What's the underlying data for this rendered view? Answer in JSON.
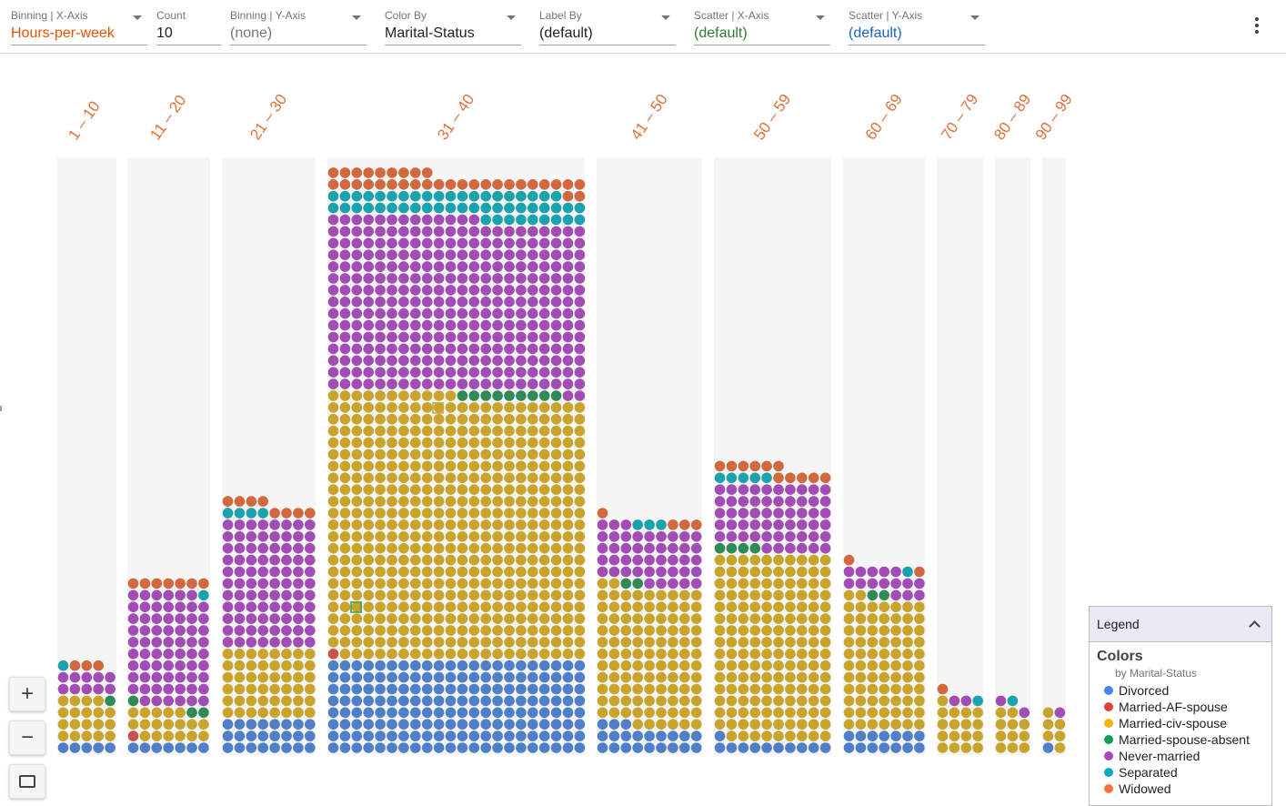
{
  "toolbar": {
    "controls": [
      {
        "label": "Binning | X-Axis",
        "value": "Hours-per-week",
        "color": "#e65100",
        "dropdown": true
      },
      {
        "label": "Count",
        "value": "10",
        "color": "#212121",
        "dropdown": false
      },
      {
        "label": "Binning | Y-Axis",
        "value": "(none)",
        "color": "#757575",
        "dropdown": true
      },
      {
        "label": "Color By",
        "value": "Marital-Status",
        "color": "#212121",
        "dropdown": true
      },
      {
        "label": "Label By",
        "value": "(default)",
        "color": "#212121",
        "dropdown": true
      },
      {
        "label": "Scatter | X-Axis",
        "value": "(default)",
        "color": "#2e7d32",
        "dropdown": true
      },
      {
        "label": "Scatter | Y-Axis",
        "value": "(default)",
        "color": "#1565c0",
        "dropdown": true
      }
    ],
    "menu_icon": "more-vert-icon"
  },
  "zoom": {
    "zoom_in_label": "+",
    "zoom_out_label": "−",
    "fit_icon": "fit-to-screen-icon"
  },
  "legend": {
    "header": "Legend",
    "title": "Colors",
    "subtitle": "by Marital-Status",
    "items": [
      {
        "label": "Divorced",
        "color": "#4285f4"
      },
      {
        "label": "Married-AF-spouse",
        "color": "#db4437"
      },
      {
        "label": "Married-civ-spouse",
        "color": "#f4b400"
      },
      {
        "label": "Married-spouse-absent",
        "color": "#0f9d58"
      },
      {
        "label": "Never-married",
        "color": "#ab47bc"
      },
      {
        "label": "Separated",
        "color": "#00acc1"
      },
      {
        "label": "Widowed",
        "color": "#ff7043"
      }
    ]
  },
  "chart_data": {
    "type": "unit-dot-histogram",
    "x_field": "Hours-per-week",
    "color_field": "Marital-Status",
    "bins": [
      {
        "label": "1 – 10",
        "cols": 5,
        "stack": [
          "Divorced:5",
          "Married-AF-spouse:0",
          "Married-civ-spouse:19",
          "Married-spouse-absent:1",
          "Never-married:10",
          "Separated:1",
          "Widowed:3"
        ]
      },
      {
        "label": "11 – 20",
        "cols": 7,
        "stack": [
          "Divorced:7",
          "Married-AF-spouse:1",
          "Married-civ-spouse:18",
          "Married-spouse-absent:3",
          "Never-married:68",
          "Separated:1",
          "Widowed:7"
        ]
      },
      {
        "label": "21 – 30",
        "cols": 8,
        "stack": [
          "Divorced:24",
          "Married-civ-spouse:48",
          "Never-married:88",
          "Separated:4",
          "Widowed:8"
        ]
      },
      {
        "label": "31 – 40",
        "cols": 22,
        "stack": [
          "Divorced:176",
          "Married-AF-spouse:1",
          "Married-civ-spouse:494",
          "Married-spouse-absent:9",
          "Never-married:323",
          "Separated:51",
          "Widowed:33"
        ]
      },
      {
        "label": "41 – 50",
        "cols": 9,
        "stack": [
          "Divorced:21",
          "Married-civ-spouse:107",
          "Married-spouse-absent:2",
          "Never-married:44",
          "Separated:3",
          "Widowed:4"
        ]
      },
      {
        "label": "50 – 59",
        "cols": 10,
        "stack": [
          "Divorced:11",
          "Married-civ-spouse:159",
          "Married-spouse-absent:4",
          "Never-married:56",
          "Separated:5",
          "Widowed:11"
        ]
      },
      {
        "label": "60 – 69",
        "cols": 7,
        "stack": [
          "Divorced:14",
          "Married-civ-spouse:79",
          "Married-spouse-absent:2",
          "Never-married:15",
          "Separated:1",
          "Widowed:2"
        ]
      },
      {
        "label": "70 – 79",
        "cols": 4,
        "stack": [
          "Married-civ-spouse:17",
          "Never-married:2",
          "Separated:1",
          "Widowed:1"
        ]
      },
      {
        "label": "80 – 89",
        "cols": 3,
        "stack": [
          "Married-civ-spouse:11",
          "Never-married:2",
          "Separated:1"
        ]
      },
      {
        "label": "90 – 99",
        "cols": 2,
        "stack": [
          "Divorced:1",
          "Married-civ-spouse:6",
          "Never-married:1"
        ]
      }
    ]
  }
}
